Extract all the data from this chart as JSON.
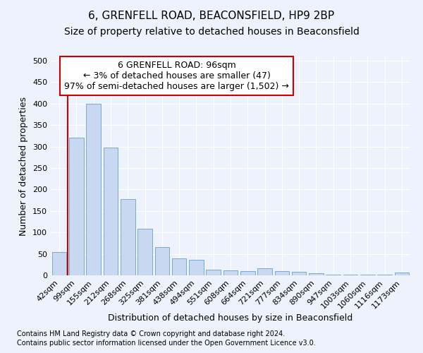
{
  "title": "6, GRENFELL ROAD, BEACONSFIELD, HP9 2BP",
  "subtitle": "Size of property relative to detached houses in Beaconsfield",
  "xlabel": "Distribution of detached houses by size in Beaconsfield",
  "ylabel": "Number of detached properties",
  "categories": [
    "42sqm",
    "99sqm",
    "155sqm",
    "212sqm",
    "268sqm",
    "325sqm",
    "381sqm",
    "438sqm",
    "494sqm",
    "551sqm",
    "608sqm",
    "664sqm",
    "721sqm",
    "777sqm",
    "834sqm",
    "890sqm",
    "947sqm",
    "1003sqm",
    "1060sqm",
    "1116sqm",
    "1173sqm"
  ],
  "values": [
    55,
    320,
    400,
    297,
    177,
    108,
    65,
    40,
    37,
    13,
    12,
    10,
    16,
    10,
    8,
    5,
    2,
    1,
    2,
    1,
    7
  ],
  "bar_color": "#c8d8f0",
  "bar_edge_color": "#7aaacc",
  "vline_color": "#cc0000",
  "annotation_box_text": "6 GRENFELL ROAD: 96sqm\n← 3% of detached houses are smaller (47)\n97% of semi-detached houses are larger (1,502) →",
  "annotation_box_facecolor": "white",
  "annotation_box_edgecolor": "#cc0000",
  "footnote1": "Contains HM Land Registry data © Crown copyright and database right 2024.",
  "footnote2": "Contains public sector information licensed under the Open Government Licence v3.0.",
  "ylim": [
    0,
    510
  ],
  "yticks": [
    0,
    50,
    100,
    150,
    200,
    250,
    300,
    350,
    400,
    450,
    500
  ],
  "background_color": "#eef2fc",
  "grid_color": "#ffffff",
  "title_fontsize": 11,
  "subtitle_fontsize": 10,
  "xlabel_fontsize": 9,
  "ylabel_fontsize": 9,
  "tick_fontsize": 8,
  "annotation_fontsize": 9,
  "footnote_fontsize": 7
}
